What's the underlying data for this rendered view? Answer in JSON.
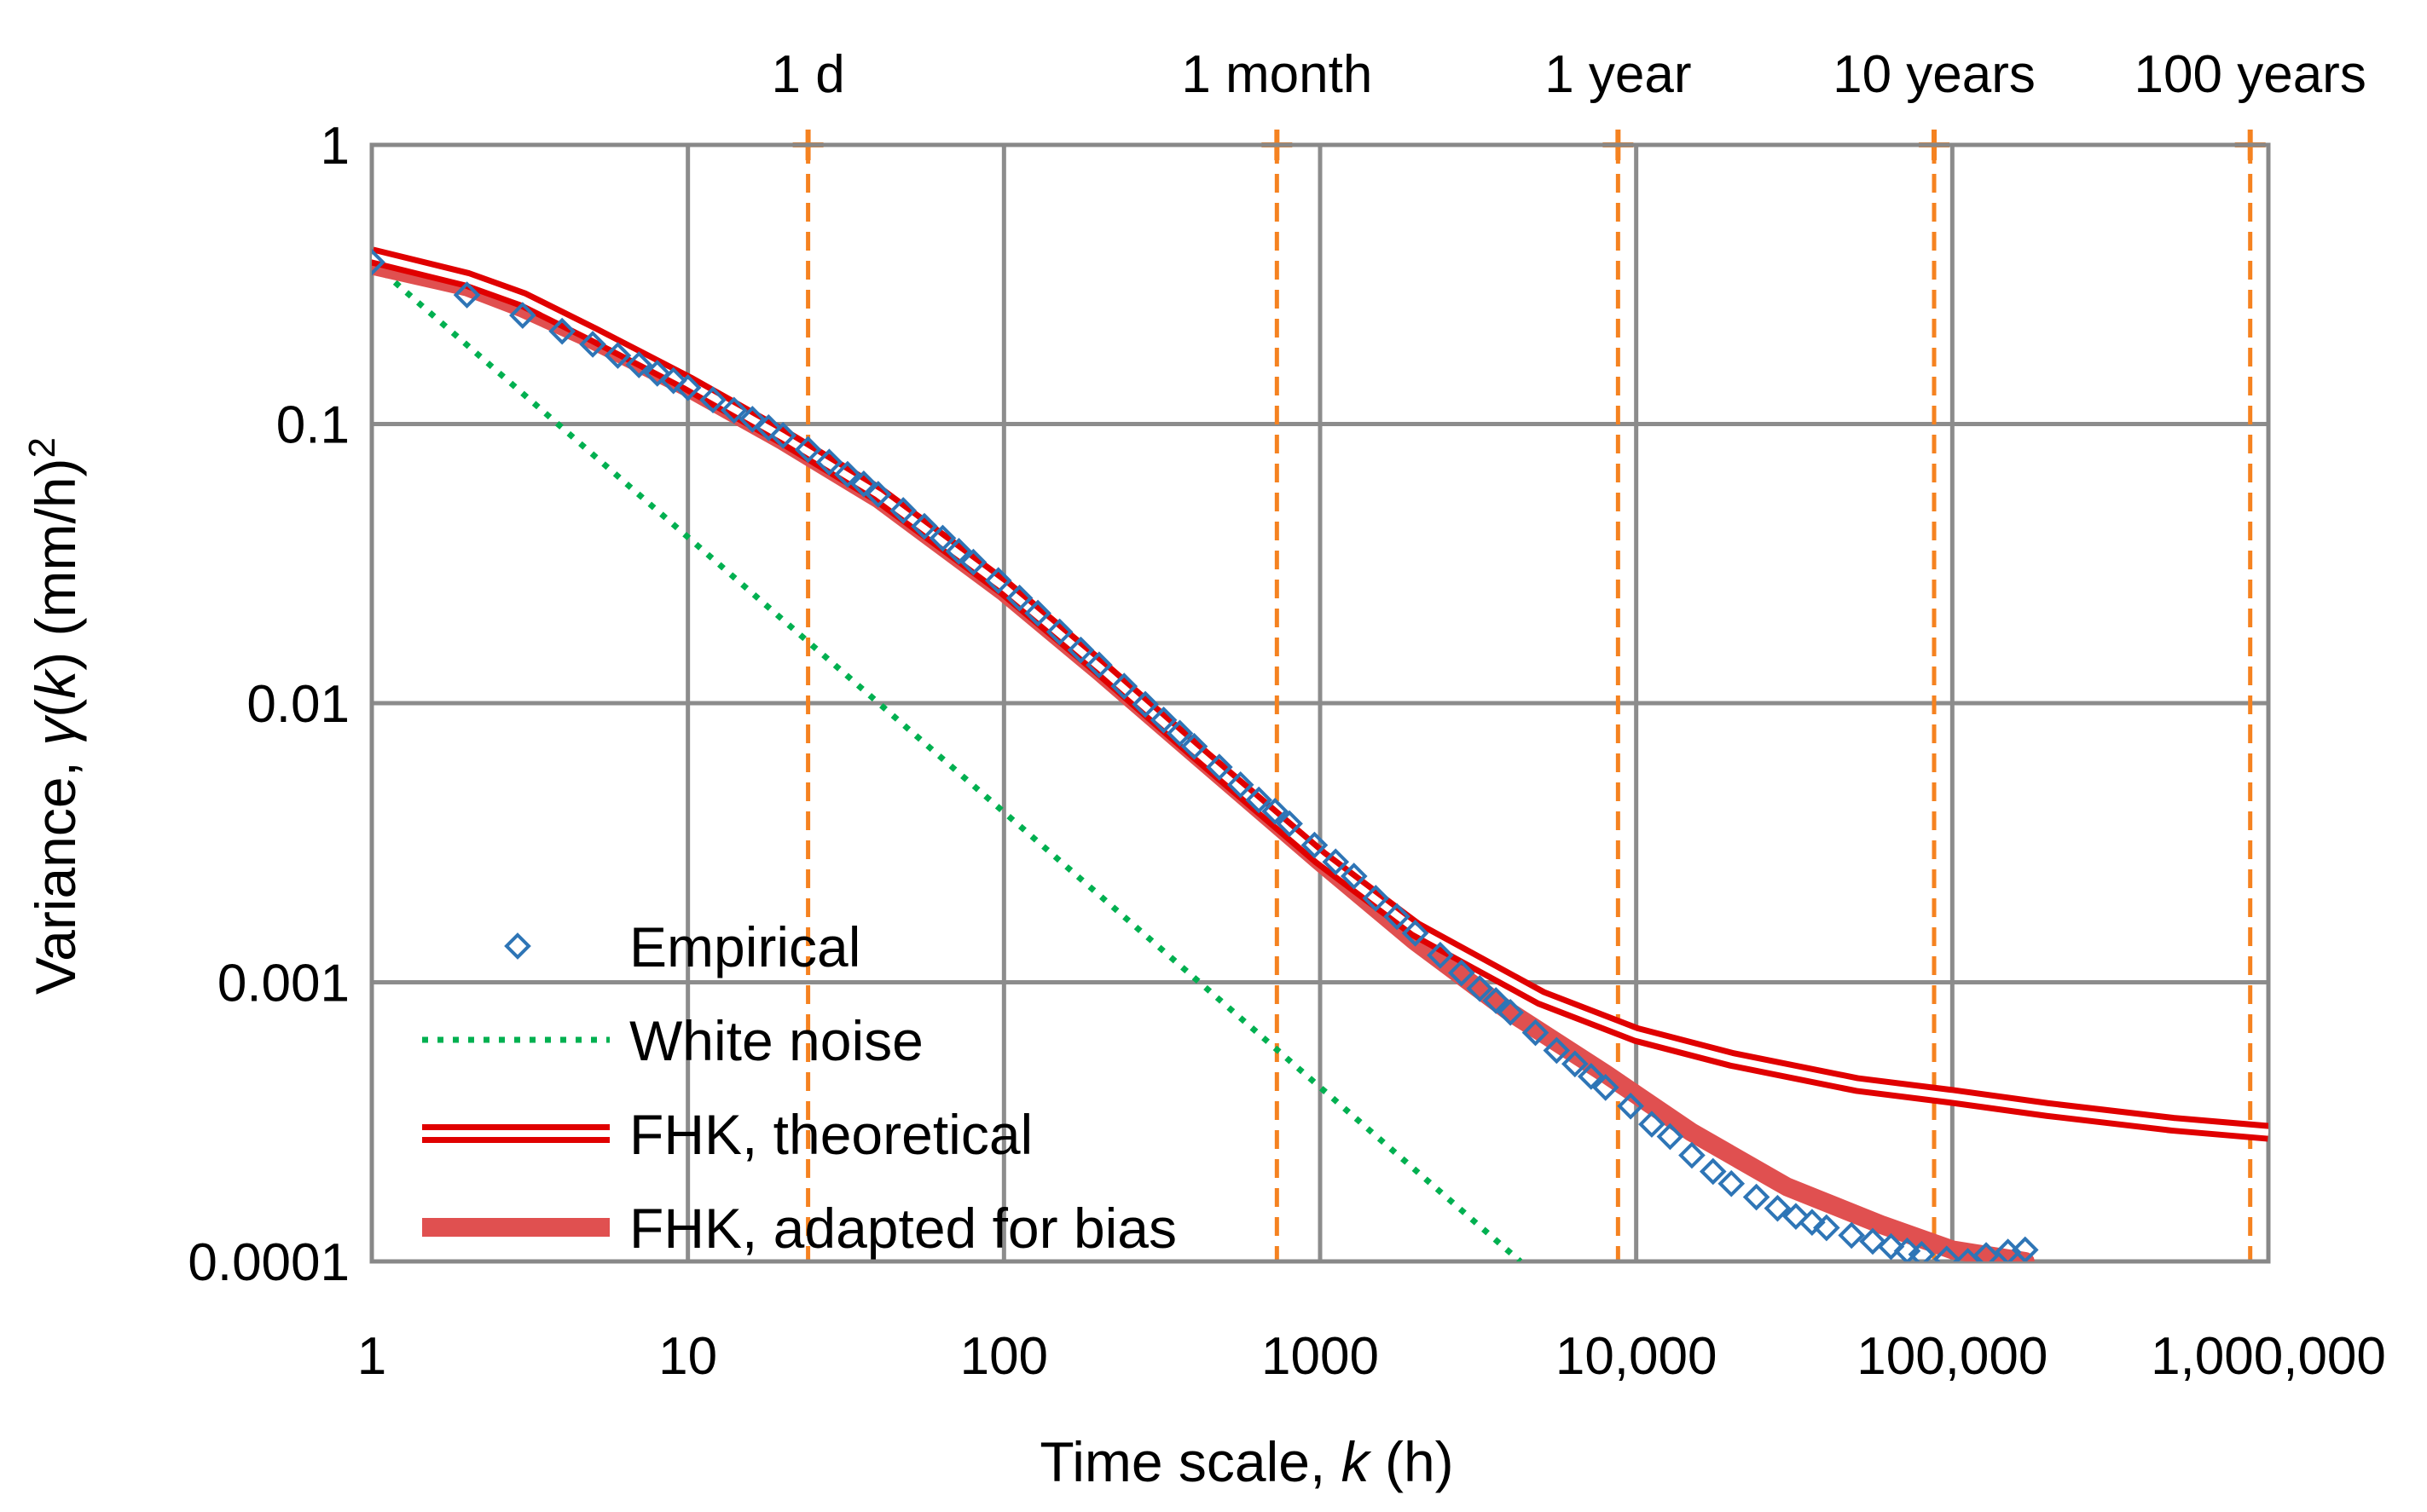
{
  "chart_data": {
    "type": "scatter",
    "xlabel": {
      "prefix": "Time scale, ",
      "var": "k",
      "suffix": " (h)"
    },
    "ylabel": {
      "prefix": "Variance, ",
      "var1": "γ",
      "mid1": "(",
      "var2": "k",
      "mid2": ") (mm/h)",
      "sup": "2"
    },
    "x_scale": "log",
    "y_scale": "log",
    "xlim": [
      1,
      1000000
    ],
    "ylim": [
      0.0001,
      1
    ],
    "grid": true,
    "x_ticks": [
      {
        "value": 1,
        "label": "1"
      },
      {
        "value": 10,
        "label": "10"
      },
      {
        "value": 100,
        "label": "100"
      },
      {
        "value": 1000,
        "label": "1000"
      },
      {
        "value": 10000,
        "label": "10,000"
      },
      {
        "value": 100000,
        "label": "100,000"
      },
      {
        "value": 1000000,
        "label": "1,000,000"
      }
    ],
    "y_ticks": [
      {
        "value": 1,
        "label": "1"
      },
      {
        "value": 0.1,
        "label": "0.1"
      },
      {
        "value": 0.01,
        "label": "0.01"
      },
      {
        "value": 0.001,
        "label": "0.001"
      },
      {
        "value": 0.0001,
        "label": "0.0001"
      }
    ],
    "reference_lines": [
      {
        "value": 24,
        "label": "1 d"
      },
      {
        "value": 730,
        "label": "1 month"
      },
      {
        "value": 8760,
        "label": "1 year"
      },
      {
        "value": 87600,
        "label": "10 years"
      },
      {
        "value": 876000,
        "label": "100 years"
      }
    ],
    "legend_position": "bottom-left",
    "series": [
      {
        "name": "Empirical",
        "type": "scatter",
        "color": "#2E75B6",
        "marker": "diamond-open",
        "x": [
          1,
          2,
          3,
          4,
          5,
          6,
          7,
          8,
          9,
          10,
          12,
          14,
          16,
          18,
          20,
          24,
          28,
          32,
          36,
          40,
          48,
          56,
          64,
          72,
          80,
          96,
          112,
          128,
          150,
          175,
          200,
          240,
          280,
          320,
          360,
          400,
          480,
          560,
          640,
          720,
          800,
          960,
          1120,
          1280,
          1500,
          1750,
          2000,
          2400,
          2800,
          3200,
          3600,
          4000,
          4800,
          5600,
          6400,
          7200,
          8000,
          9600,
          11200,
          12800,
          15000,
          17500,
          20000,
          24000,
          28000,
          32000,
          36000,
          40000,
          48000,
          56000,
          64000,
          72000,
          80000,
          96000,
          112000,
          128000,
          150000,
          170000
        ],
        "y": [
          0.38,
          0.29,
          0.245,
          0.215,
          0.193,
          0.176,
          0.163,
          0.152,
          0.143,
          0.135,
          0.122,
          0.112,
          0.104,
          0.097,
          0.091,
          0.081,
          0.073,
          0.066,
          0.061,
          0.056,
          0.049,
          0.043,
          0.039,
          0.035,
          0.032,
          0.0275,
          0.0238,
          0.021,
          0.018,
          0.0155,
          0.0137,
          0.0115,
          0.0099,
          0.0087,
          0.0078,
          0.007,
          0.0059,
          0.0051,
          0.0045,
          0.0041,
          0.0037,
          0.0031,
          0.0027,
          0.0024,
          0.002,
          0.00172,
          0.0015,
          0.00125,
          0.00108,
          0.00095,
          0.00086,
          0.00078,
          0.00066,
          0.00057,
          0.00051,
          0.00046,
          0.00042,
          0.00036,
          0.00031,
          0.00028,
          0.00024,
          0.00021,
          0.00019,
          0.00017,
          0.000155,
          0.000145,
          0.000138,
          0.000132,
          0.000124,
          0.000118,
          0.000113,
          0.000109,
          0.000106,
          0.000102,
          0.0001,
          0.000105,
          0.000108,
          0.00011
        ]
      },
      {
        "name": "White noise",
        "type": "line",
        "color": "#00B050",
        "style": "dotted",
        "x": [
          1,
          4300
        ],
        "y": [
          0.38,
          0.0001
        ]
      },
      {
        "name": "FHK, theoretical",
        "type": "line",
        "color": "#E00000",
        "style": "double",
        "x": [
          1,
          2,
          3,
          5,
          10,
          20,
          40,
          100,
          200,
          400,
          1000,
          2000,
          5000,
          10000,
          20000,
          50000,
          100000,
          200000,
          500000,
          1000000
        ],
        "y": [
          0.4,
          0.33,
          0.28,
          0.21,
          0.14,
          0.09,
          0.056,
          0.026,
          0.0135,
          0.0068,
          0.0028,
          0.00155,
          0.00088,
          0.00065,
          0.00053,
          0.00043,
          0.00039,
          0.00035,
          0.00031,
          0.00029
        ]
      },
      {
        "name": "FHK, adapted for bias",
        "type": "line",
        "color": "#E05050",
        "style": "thick",
        "x": [
          1,
          2,
          3,
          5,
          10,
          20,
          40,
          100,
          200,
          400,
          1000,
          2000,
          4000,
          8000,
          15000,
          30000,
          60000,
          100000,
          170000
        ],
        "y": [
          0.37,
          0.31,
          0.26,
          0.2,
          0.135,
          0.087,
          0.054,
          0.025,
          0.013,
          0.0066,
          0.0027,
          0.0014,
          0.00078,
          0.00047,
          0.00029,
          0.000185,
          0.000135,
          0.00011,
          0.0001
        ]
      }
    ]
  }
}
